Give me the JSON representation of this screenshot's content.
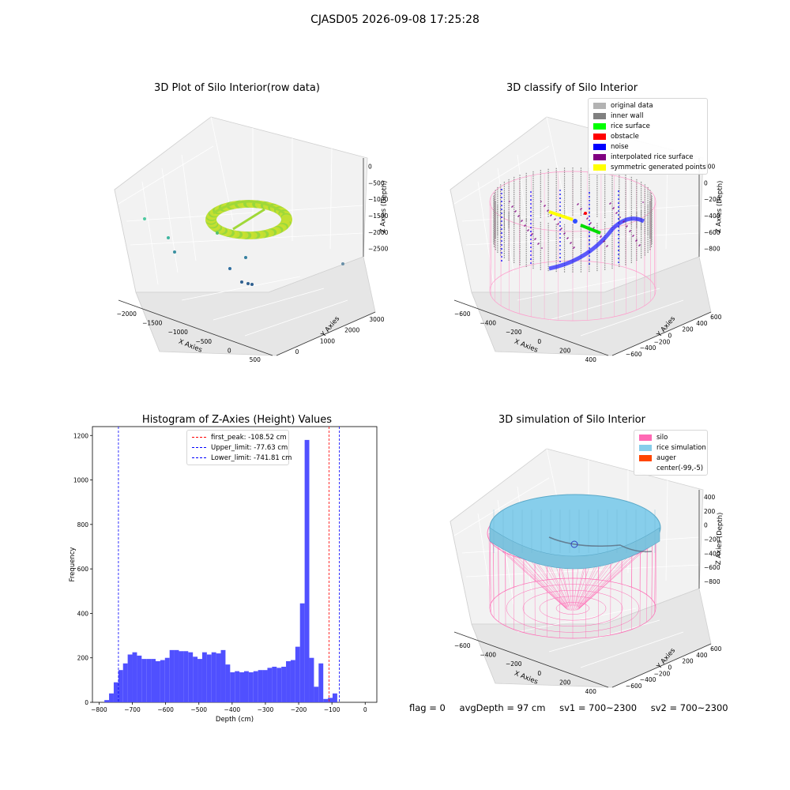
{
  "figure_title": "CJASD05 2026-09-08 17:25:28",
  "panels": {
    "raw": {
      "title": "3D Plot of Silo Interior(row data)",
      "xlabel": "X Axies",
      "ylabel": "Y Axies",
      "zlabel": "Z Axies (Depth)",
      "xticks": [
        "−2000",
        "−1500",
        "−1000",
        "−500",
        "0",
        "500"
      ],
      "yticks": [
        "0",
        "1000",
        "2000",
        "3000"
      ],
      "zticks": [
        "0",
        "−500",
        "−1000",
        "−1500",
        "−2000",
        "−2500"
      ]
    },
    "classify": {
      "title": "3D classify of Silo Interior",
      "xlabel": "X Axies",
      "ylabel": "Y Axies",
      "zlabel": "Z Axies (Depth)",
      "xticks": [
        "−600",
        "−400",
        "−200",
        "0",
        "200",
        "400"
      ],
      "yticks": [
        "−600",
        "−400",
        "−200",
        "0",
        "200",
        "400",
        "600"
      ],
      "zticks": [
        "200",
        "0",
        "−200",
        "−400",
        "−600",
        "−800"
      ],
      "legend": [
        {
          "label": "original data",
          "color": "#b3b3b3"
        },
        {
          "label": "inner wall",
          "color": "#808080"
        },
        {
          "label": "rice surface",
          "color": "#00ff00"
        },
        {
          "label": "obstacle",
          "color": "#ff0000"
        },
        {
          "label": "noise",
          "color": "#0000ff"
        },
        {
          "label": "interpolated rice surface",
          "color": "#800080"
        },
        {
          "label": "symmetric generated points",
          "color": "#ffff00"
        }
      ]
    },
    "simulation": {
      "title": "3D simulation of Silo Interior",
      "xlabel": "X Axies",
      "ylabel": "Y Axies",
      "zlabel": "Z Axies (Depth)",
      "xticks": [
        "−600",
        "−400",
        "−200",
        "0",
        "200",
        "400"
      ],
      "yticks": [
        "−600",
        "−400",
        "−200",
        "0",
        "200",
        "400",
        "600"
      ],
      "zticks": [
        "400",
        "200",
        "0",
        "−200",
        "−400",
        "−600",
        "−800"
      ],
      "legend": [
        {
          "label": "silo",
          "color": "#ff69b4"
        },
        {
          "label": "rice simulation",
          "color": "#87ceeb"
        },
        {
          "label": "auger",
          "color": "#ff4500"
        },
        {
          "label": "center(-99,-5)",
          "color": ""
        }
      ]
    }
  },
  "status": {
    "flag": "flag = 0",
    "avg_depth": "avgDepth = 97 cm",
    "sv1": "sv1 = 700~2300",
    "sv2": "sv2 = 700~2300"
  },
  "chart_data": {
    "type": "bar",
    "title": "Histogram of Z-Axies (Height) Values",
    "xlabel": "Depth (cm)",
    "ylabel": "Frequency",
    "xlim": [
      -820,
      35
    ],
    "ylim": [
      0,
      1240
    ],
    "xticks": [
      -800,
      -700,
      -600,
      -500,
      -400,
      -300,
      -200,
      -100,
      0
    ],
    "yticks": [
      0,
      200,
      400,
      600,
      800,
      1000,
      1200
    ],
    "bin_width": 14,
    "bins": [
      {
        "x0": -784,
        "count": 10
      },
      {
        "x0": -770,
        "count": 40
      },
      {
        "x0": -756,
        "count": 90
      },
      {
        "x0": -742,
        "count": 145
      },
      {
        "x0": -728,
        "count": 175
      },
      {
        "x0": -714,
        "count": 215
      },
      {
        "x0": -700,
        "count": 225
      },
      {
        "x0": -686,
        "count": 210
      },
      {
        "x0": -672,
        "count": 195
      },
      {
        "x0": -658,
        "count": 195
      },
      {
        "x0": -644,
        "count": 195
      },
      {
        "x0": -630,
        "count": 185
      },
      {
        "x0": -616,
        "count": 190
      },
      {
        "x0": -602,
        "count": 200
      },
      {
        "x0": -588,
        "count": 235
      },
      {
        "x0": -574,
        "count": 235
      },
      {
        "x0": -560,
        "count": 230
      },
      {
        "x0": -546,
        "count": 230
      },
      {
        "x0": -532,
        "count": 225
      },
      {
        "x0": -518,
        "count": 205
      },
      {
        "x0": -504,
        "count": 195
      },
      {
        "x0": -490,
        "count": 225
      },
      {
        "x0": -476,
        "count": 215
      },
      {
        "x0": -462,
        "count": 225
      },
      {
        "x0": -448,
        "count": 220
      },
      {
        "x0": -434,
        "count": 235
      },
      {
        "x0": -420,
        "count": 170
      },
      {
        "x0": -406,
        "count": 135
      },
      {
        "x0": -392,
        "count": 140
      },
      {
        "x0": -378,
        "count": 135
      },
      {
        "x0": -364,
        "count": 140
      },
      {
        "x0": -350,
        "count": 135
      },
      {
        "x0": -336,
        "count": 140
      },
      {
        "x0": -322,
        "count": 145
      },
      {
        "x0": -308,
        "count": 145
      },
      {
        "x0": -294,
        "count": 155
      },
      {
        "x0": -280,
        "count": 160
      },
      {
        "x0": -266,
        "count": 155
      },
      {
        "x0": -252,
        "count": 160
      },
      {
        "x0": -238,
        "count": 185
      },
      {
        "x0": -224,
        "count": 190
      },
      {
        "x0": -210,
        "count": 250
      },
      {
        "x0": -196,
        "count": 445
      },
      {
        "x0": -182,
        "count": 1180
      },
      {
        "x0": -168,
        "count": 200
      },
      {
        "x0": -154,
        "count": 70
      },
      {
        "x0": -140,
        "count": 175
      },
      {
        "x0": -126,
        "count": 15
      },
      {
        "x0": -112,
        "count": 20
      },
      {
        "x0": -98,
        "count": 40
      }
    ],
    "vlines": [
      {
        "label": "first_peak: -108.52 cm",
        "x": -108.52,
        "color": "#ff0000"
      },
      {
        "label": "Upper_limit: -77.63 cm",
        "x": -77.63,
        "color": "#0000ff"
      },
      {
        "label": "Lower_limit: -741.81 cm",
        "x": -741.81,
        "color": "#0000ff"
      }
    ],
    "bar_color": "#5050ff"
  }
}
